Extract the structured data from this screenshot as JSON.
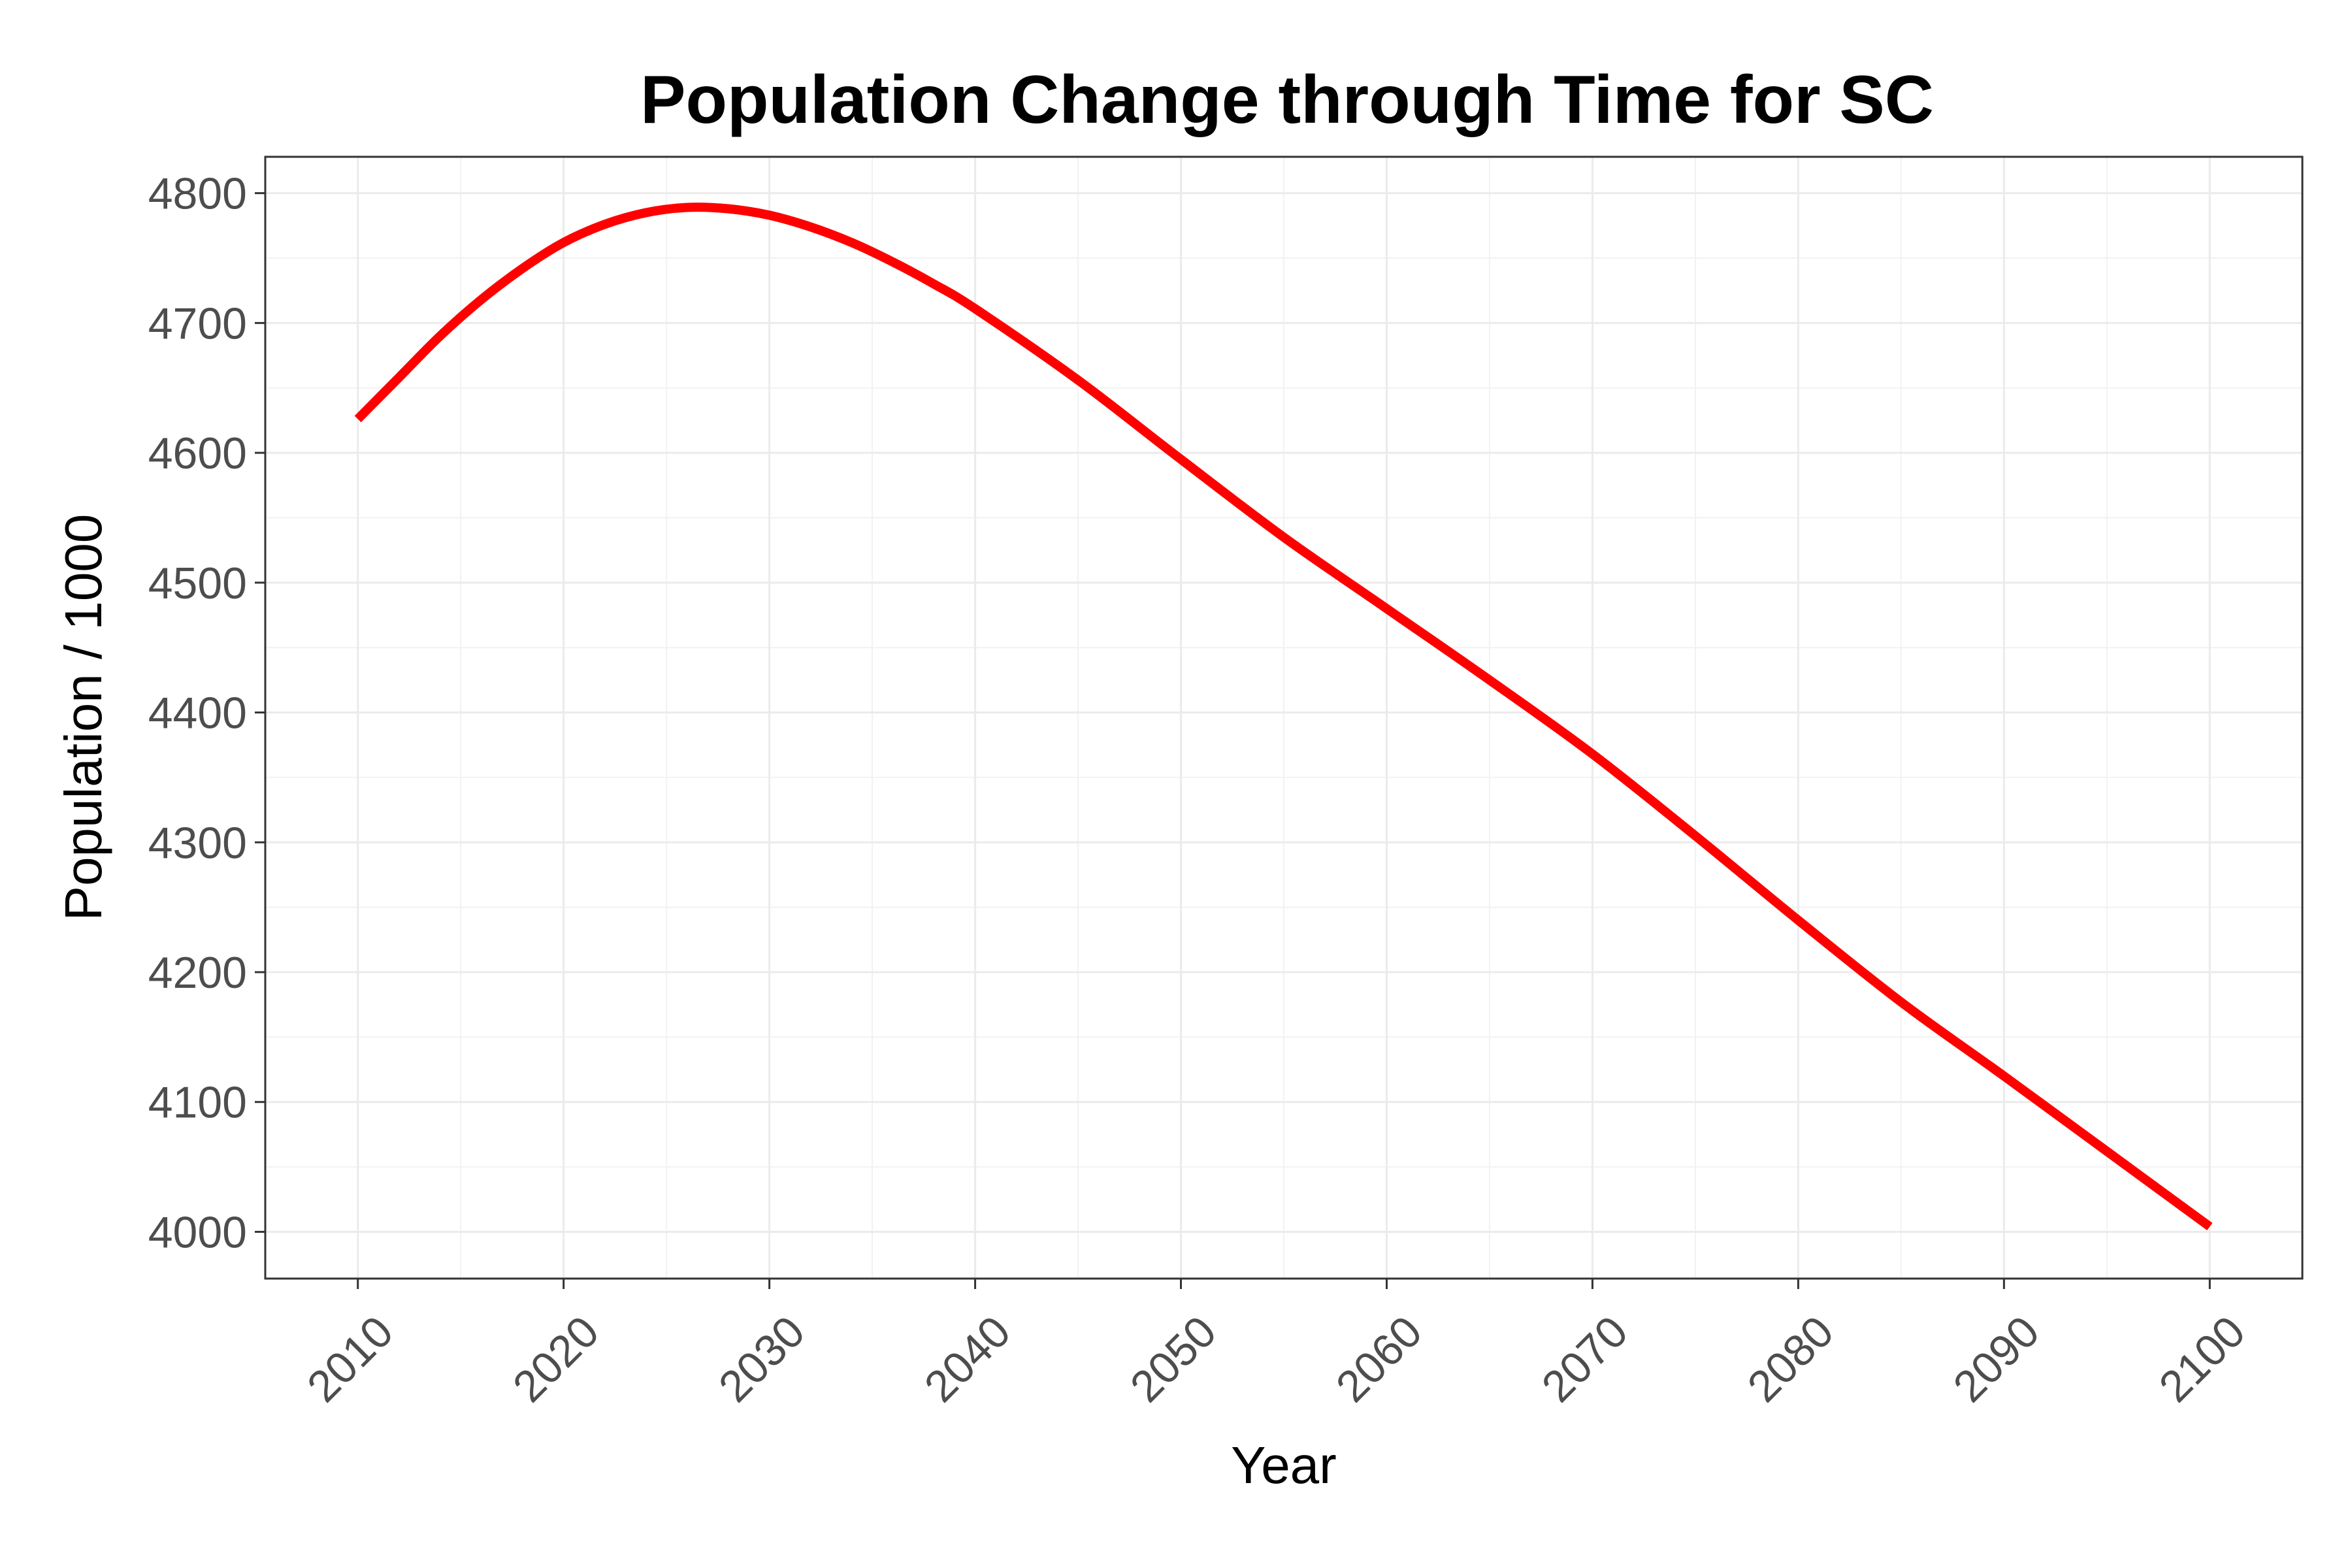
{
  "chart_data": {
    "type": "line",
    "title": "Population Change through Time for SC",
    "xlabel": "Year",
    "ylabel": "Population / 1000",
    "xlim": [
      2005.5,
      2104.5
    ],
    "ylim": [
      3964,
      4828
    ],
    "x_ticks": [
      2010,
      2020,
      2030,
      2040,
      2050,
      2060,
      2070,
      2080,
      2090,
      2100
    ],
    "y_ticks": [
      4000,
      4100,
      4200,
      4300,
      4400,
      4500,
      4600,
      4700,
      4800
    ],
    "grid": true,
    "legend": "none",
    "series": [
      {
        "color": "#ff0000",
        "x": [
          2010,
          2012,
          2014,
          2016,
          2018,
          2020,
          2022,
          2024,
          2026,
          2028,
          2030,
          2032,
          2034,
          2036,
          2038,
          2040,
          2045,
          2050,
          2055,
          2060,
          2065,
          2070,
          2075,
          2080,
          2085,
          2090,
          2095,
          2100
        ],
        "y": [
          4626,
          4658,
          4690,
          4718,
          4742,
          4762,
          4776,
          4785,
          4789,
          4788,
          4783,
          4774,
          4762,
          4747,
          4730,
          4711,
          4656,
          4595,
          4535,
          4480,
          4425,
          4368,
          4305,
          4240,
          4177,
          4120,
          4062,
          4004
        ]
      }
    ]
  }
}
